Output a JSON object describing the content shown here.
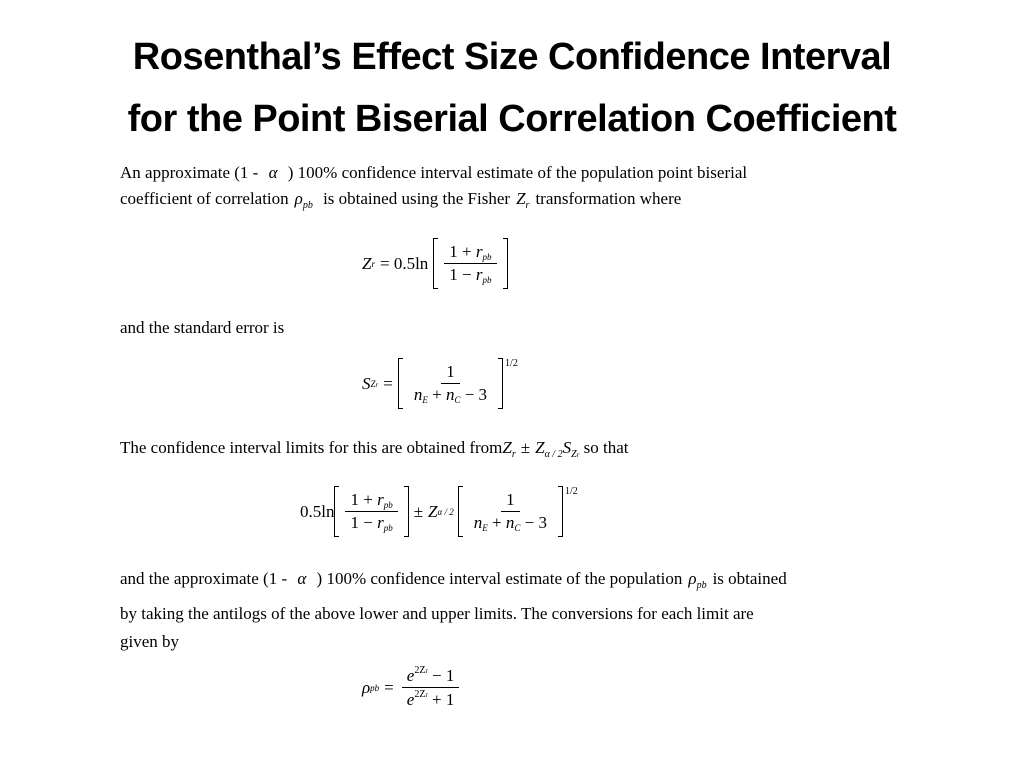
{
  "title": [
    "Rosenthal’s Effect Size Confidence Interval",
    "for the Point Biserial Correlation Coefficient"
  ],
  "paragraphs": [
    [
      "An approximate (1 - ",
      "α",
      " ) 100% confidence interval estimate of the population point biserial",
      "coefficient of correlation",
      "ρ",
      "pb",
      "is obtained using the Fisher",
      "Z",
      "r",
      "transformation where"
    ],
    [
      "and the standard error is"
    ],
    [
      "The confidence interval limits for this are obtained from",
      "Z",
      "r",
      "±",
      "Z",
      "α / 2",
      "S",
      "Z",
      "r",
      "so that"
    ],
    [
      "and the approximate (1 - ",
      "α",
      " ) 100% confidence interval estimate of the population",
      "ρ",
      "pb",
      "is obtained",
      "by taking the antilogs of the above lower and upper limits. The conversions for each limit are",
      "given by"
    ]
  ],
  "equations": [
    [
      "Z",
      "r",
      "= 0.5ln",
      "1 +",
      "r",
      "pb",
      "1 −",
      "r",
      "pb"
    ],
    [
      "S",
      "Z",
      "r",
      "=",
      "1",
      "n",
      "E",
      "+",
      "n",
      "C",
      "− 3",
      "1/2"
    ],
    [
      "0.5ln",
      "1 +",
      "r",
      "pb",
      "1 −",
      "r",
      "pb",
      "±",
      "Z",
      "α / 2",
      "1",
      "n",
      "E",
      "+",
      "n",
      "C",
      "− 3",
      "1/2"
    ],
    [
      "ρ",
      "pb",
      "=",
      "e",
      "2Z",
      "r",
      "− 1",
      "e",
      "2Z",
      "r",
      "+ 1"
    ]
  ]
}
